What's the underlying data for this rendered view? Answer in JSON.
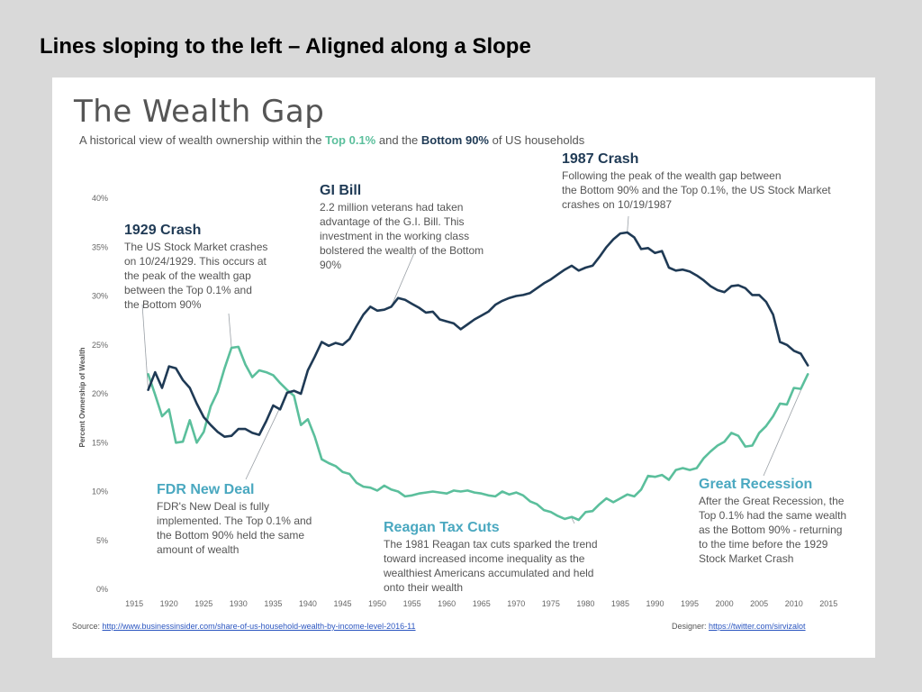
{
  "slide_title": "Lines sloping to the left – Aligned along a Slope",
  "chart_data": {
    "type": "line",
    "title": "The Wealth Gap",
    "subtitle": {
      "prefix": "A historical view of wealth ownership within the ",
      "top": "Top 0.1%",
      "mid": " and the ",
      "bottom": "Bottom 90%",
      "suffix": " of US households"
    },
    "ylabel": "Percent Ownership of Wealth",
    "xlabel": "",
    "xlim": [
      1912,
      2016
    ],
    "ylim": [
      0,
      40
    ],
    "x_ticks": [
      1915,
      1920,
      1925,
      1930,
      1935,
      1940,
      1945,
      1950,
      1955,
      1960,
      1965,
      1970,
      1975,
      1980,
      1985,
      1990,
      1995,
      2000,
      2005,
      2010,
      2015
    ],
    "y_ticks": [
      0,
      5,
      10,
      15,
      20,
      25,
      30,
      35,
      40
    ],
    "y_tick_labels": [
      "0%",
      "5%",
      "10%",
      "15%",
      "20%",
      "25%",
      "30%",
      "35%",
      "40%"
    ],
    "grid": false,
    "series": [
      {
        "color": "#1f3a55",
        "points": [
          [
            1917,
            20.4
          ],
          [
            1918,
            22.2
          ],
          [
            1919,
            20.6
          ],
          [
            1920,
            22.8
          ],
          [
            1921,
            22.6
          ],
          [
            1922,
            21.4
          ],
          [
            1923,
            20.6
          ],
          [
            1924,
            19.0
          ],
          [
            1925,
            17.6
          ],
          [
            1926,
            16.8
          ],
          [
            1927,
            16.1
          ],
          [
            1928,
            15.6
          ],
          [
            1929,
            15.7
          ],
          [
            1930,
            16.4
          ],
          [
            1931,
            16.4
          ],
          [
            1932,
            16.0
          ],
          [
            1933,
            15.8
          ],
          [
            1934,
            17.2
          ],
          [
            1935,
            18.8
          ],
          [
            1936,
            18.4
          ],
          [
            1937,
            20.1
          ],
          [
            1938,
            20.3
          ],
          [
            1939,
            20.0
          ],
          [
            1940,
            22.4
          ],
          [
            1941,
            23.8
          ],
          [
            1942,
            25.3
          ],
          [
            1943,
            24.9
          ],
          [
            1944,
            25.2
          ],
          [
            1945,
            25.0
          ],
          [
            1946,
            25.6
          ],
          [
            1947,
            26.9
          ],
          [
            1948,
            28.1
          ],
          [
            1949,
            28.9
          ],
          [
            1950,
            28.5
          ],
          [
            1951,
            28.6
          ],
          [
            1952,
            28.9
          ],
          [
            1953,
            29.8
          ],
          [
            1954,
            29.6
          ],
          [
            1955,
            29.2
          ],
          [
            1956,
            28.8
          ],
          [
            1957,
            28.3
          ],
          [
            1958,
            28.4
          ],
          [
            1959,
            27.6
          ],
          [
            1960,
            27.4
          ],
          [
            1961,
            27.2
          ],
          [
            1962,
            26.6
          ],
          [
            1963,
            27.1
          ],
          [
            1964,
            27.6
          ],
          [
            1965,
            28.0
          ],
          [
            1966,
            28.4
          ],
          [
            1967,
            29.1
          ],
          [
            1968,
            29.5
          ],
          [
            1969,
            29.8
          ],
          [
            1970,
            30.0
          ],
          [
            1971,
            30.1
          ],
          [
            1972,
            30.3
          ],
          [
            1973,
            30.8
          ],
          [
            1974,
            31.3
          ],
          [
            1975,
            31.7
          ],
          [
            1976,
            32.2
          ],
          [
            1977,
            32.7
          ],
          [
            1978,
            33.1
          ],
          [
            1979,
            32.6
          ],
          [
            1980,
            32.9
          ],
          [
            1981,
            33.1
          ],
          [
            1982,
            34.0
          ],
          [
            1983,
            35.0
          ],
          [
            1984,
            35.8
          ],
          [
            1985,
            36.4
          ],
          [
            1986,
            36.5
          ],
          [
            1987,
            36.0
          ],
          [
            1988,
            34.8
          ],
          [
            1989,
            34.9
          ],
          [
            1990,
            34.4
          ],
          [
            1991,
            34.6
          ],
          [
            1992,
            32.9
          ],
          [
            1993,
            32.6
          ],
          [
            1994,
            32.7
          ],
          [
            1995,
            32.5
          ],
          [
            1996,
            32.1
          ],
          [
            1997,
            31.6
          ],
          [
            1998,
            31.0
          ],
          [
            1999,
            30.6
          ],
          [
            2000,
            30.4
          ],
          [
            2001,
            31.0
          ],
          [
            2002,
            31.1
          ],
          [
            2003,
            30.8
          ],
          [
            2004,
            30.1
          ],
          [
            2005,
            30.1
          ],
          [
            2006,
            29.4
          ],
          [
            2007,
            28.1
          ],
          [
            2008,
            25.3
          ],
          [
            2009,
            25.0
          ],
          [
            2010,
            24.4
          ],
          [
            2011,
            24.1
          ],
          [
            2012,
            22.9
          ]
        ]
      },
      {
        "color": "#5bbf9c",
        "points": [
          [
            1917,
            22.0
          ],
          [
            1918,
            19.9
          ],
          [
            1919,
            17.7
          ],
          [
            1920,
            18.4
          ],
          [
            1921,
            15.0
          ],
          [
            1922,
            15.1
          ],
          [
            1923,
            17.3
          ],
          [
            1924,
            15.0
          ],
          [
            1925,
            16.1
          ],
          [
            1926,
            18.7
          ],
          [
            1927,
            20.2
          ],
          [
            1928,
            22.6
          ],
          [
            1929,
            24.7
          ],
          [
            1930,
            24.8
          ],
          [
            1931,
            23.0
          ],
          [
            1932,
            21.7
          ],
          [
            1933,
            22.4
          ],
          [
            1934,
            22.2
          ],
          [
            1935,
            21.9
          ],
          [
            1936,
            21.1
          ],
          [
            1937,
            20.4
          ],
          [
            1938,
            19.8
          ],
          [
            1939,
            16.8
          ],
          [
            1940,
            17.4
          ],
          [
            1941,
            15.6
          ],
          [
            1942,
            13.3
          ],
          [
            1943,
            12.9
          ],
          [
            1944,
            12.6
          ],
          [
            1945,
            12.0
          ],
          [
            1946,
            11.8
          ],
          [
            1947,
            10.9
          ],
          [
            1948,
            10.5
          ],
          [
            1949,
            10.4
          ],
          [
            1950,
            10.1
          ],
          [
            1951,
            10.6
          ],
          [
            1952,
            10.2
          ],
          [
            1953,
            10.0
          ],
          [
            1954,
            9.5
          ],
          [
            1955,
            9.6
          ],
          [
            1956,
            9.8
          ],
          [
            1957,
            9.9
          ],
          [
            1958,
            10.0
          ],
          [
            1959,
            9.9
          ],
          [
            1960,
            9.8
          ],
          [
            1961,
            10.1
          ],
          [
            1962,
            10.0
          ],
          [
            1963,
            10.1
          ],
          [
            1964,
            9.9
          ],
          [
            1965,
            9.8
          ],
          [
            1966,
            9.6
          ],
          [
            1967,
            9.5
          ],
          [
            1968,
            10.0
          ],
          [
            1969,
            9.7
          ],
          [
            1970,
            9.9
          ],
          [
            1971,
            9.6
          ],
          [
            1972,
            9.0
          ],
          [
            1973,
            8.7
          ],
          [
            1974,
            8.1
          ],
          [
            1975,
            7.9
          ],
          [
            1976,
            7.5
          ],
          [
            1977,
            7.2
          ],
          [
            1978,
            7.4
          ],
          [
            1979,
            7.1
          ],
          [
            1980,
            7.9
          ],
          [
            1981,
            8.0
          ],
          [
            1982,
            8.7
          ],
          [
            1983,
            9.3
          ],
          [
            1984,
            8.9
          ],
          [
            1985,
            9.3
          ],
          [
            1986,
            9.7
          ],
          [
            1987,
            9.5
          ],
          [
            1988,
            10.2
          ],
          [
            1989,
            11.6
          ],
          [
            1990,
            11.5
          ],
          [
            1991,
            11.7
          ],
          [
            1992,
            11.2
          ],
          [
            1993,
            12.2
          ],
          [
            1994,
            12.4
          ],
          [
            1995,
            12.2
          ],
          [
            1996,
            12.4
          ],
          [
            1997,
            13.4
          ],
          [
            1998,
            14.1
          ],
          [
            1999,
            14.7
          ],
          [
            2000,
            15.1
          ],
          [
            2001,
            16.0
          ],
          [
            2002,
            15.7
          ],
          [
            2003,
            14.6
          ],
          [
            2004,
            14.7
          ],
          [
            2005,
            16.0
          ],
          [
            2006,
            16.7
          ],
          [
            2007,
            17.7
          ],
          [
            2008,
            19.0
          ],
          [
            2009,
            18.9
          ],
          [
            2010,
            20.6
          ],
          [
            2011,
            20.5
          ],
          [
            2012,
            22.0
          ]
        ]
      }
    ],
    "annotations": [
      {
        "title": "1929 Crash",
        "color": "navy",
        "text": [
          "The US Stock Market crashes",
          "on 10/24/1929. This occurs at",
          "the peak of the wealth gap",
          "between the Top 0.1% and",
          "the Bottom 90%"
        ]
      },
      {
        "title": "GI Bill",
        "color": "navy",
        "text": [
          "2.2 million veterans had taken",
          "advantage of the G.I. Bill. This",
          "investment in the working class",
          "bolstered the wealth of the Bottom",
          "90%"
        ]
      },
      {
        "title": "1987 Crash",
        "color": "navy",
        "text": [
          "Following the peak of the wealth gap between",
          "the Bottom 90% and the Top 0.1%, the US Stock Market",
          "crashes on 10/19/1987"
        ]
      },
      {
        "title": "FDR New Deal",
        "color": "teal",
        "text": [
          "FDR's New Deal is fully",
          "implemented. The Top 0.1% and",
          "the Bottom 90% held the same",
          "amount of wealth"
        ]
      },
      {
        "title": "Reagan Tax Cuts",
        "color": "teal",
        "text": [
          "The 1981 Reagan tax cuts sparked the trend",
          "toward increased income inequality as the",
          "wealthiest Americans accumulated and held",
          "onto their wealth"
        ]
      },
      {
        "title": "Great Recession",
        "color": "teal",
        "text": [
          "After the Great Recession, the",
          "Top 0.1% had the same wealth",
          "as the Bottom 90% - returning",
          "to the time before the 1929",
          "Stock Market Crash"
        ]
      }
    ],
    "source": {
      "label": "Source: ",
      "url": "http://www.businessinsider.com/share-of-us-household-wealth-by-income-level-2016-11"
    },
    "designer": {
      "label": "Designer: ",
      "url": "https://twitter.com/sirvizalot"
    }
  }
}
